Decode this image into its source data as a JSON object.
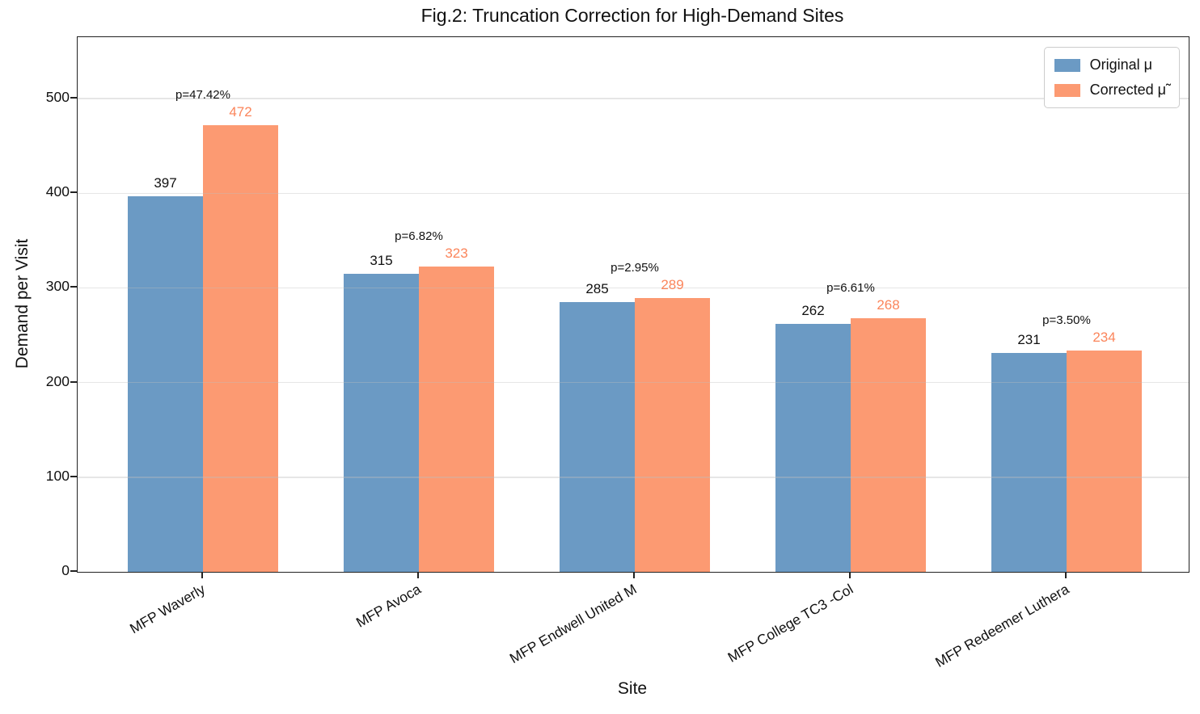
{
  "chart_data": {
    "type": "bar",
    "title": "Fig.2: Truncation Correction for High-Demand Sites",
    "xlabel": "Site",
    "ylabel": "Demand per Visit",
    "categories": [
      "MFP Waverly",
      "MFP Avoca",
      "MFP Endwell United M",
      "MFP College TC3 -Col",
      "MFP Redeemer Luthera"
    ],
    "series": [
      {
        "name": "Original μ",
        "color": "#6B9AC4",
        "value_label_color": "#111111",
        "values": [
          397,
          315,
          285,
          262,
          231
        ]
      },
      {
        "name": "Corrected μ̃",
        "color": "#FC9A72",
        "value_label_color": "#FB855B",
        "values": [
          472,
          323,
          289,
          268,
          234
        ]
      }
    ],
    "annotations": [
      "p=47.42%",
      "p=6.82%",
      "p=2.95%",
      "p=6.61%",
      "p=3.50%"
    ],
    "yticks": [
      0,
      100,
      200,
      300,
      400,
      500
    ],
    "ylim": [
      0,
      565
    ],
    "grid": true,
    "legend_position": "upper right",
    "background_color": "#ffffff",
    "spine_color": "#222222"
  }
}
